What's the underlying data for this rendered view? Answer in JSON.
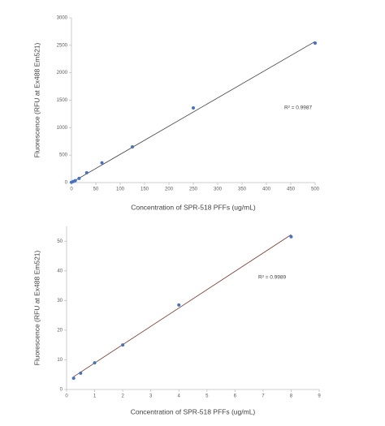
{
  "chart_data": [
    {
      "type": "scatter",
      "x_label": "Concentration of SPR-518 PFFs (ug/mL)",
      "y_label": "Fluorescence (RFU at Ex488 Em521)",
      "annotation": "R² = 0.9987",
      "x": [
        0,
        3.9,
        7.8,
        15.6,
        31.25,
        62.5,
        125,
        250,
        500
      ],
      "values": [
        5,
        20,
        35,
        75,
        180,
        360,
        650,
        1360,
        2540
      ],
      "color": "#4472c4",
      "trendline": {
        "x": [
          0,
          500
        ],
        "values": [
          0,
          2570
        ],
        "color": "#404040"
      },
      "xlim": [
        0,
        500
      ],
      "xticks": [
        0,
        50,
        100,
        150,
        200,
        250,
        300,
        350,
        400,
        450,
        500
      ],
      "ylim": [
        0,
        3000
      ],
      "yticks": [
        0,
        500,
        1000,
        1500,
        2000,
        2500,
        3000
      ]
    },
    {
      "type": "scatter",
      "x_label": "Concentration of SPR-518 PFFs (ug/mL)",
      "y_label": "Fluorescence (RFU at Ex488 Em521)",
      "annotation": "R² = 0.9989",
      "x": [
        0.25,
        0.5,
        1,
        2,
        4,
        8
      ],
      "values": [
        3.8,
        5.5,
        9,
        15,
        28.5,
        51.5
      ],
      "color": "#4472c4",
      "trendline": {
        "x": [
          0.25,
          8
        ],
        "values": [
          4.3,
          52.2
        ],
        "color": "#7a3b2e"
      },
      "xlim": [
        0,
        9
      ],
      "xticks": [
        0,
        1,
        2,
        3,
        4,
        5,
        6,
        7,
        8,
        9
      ],
      "ylim": [
        0,
        55
      ],
      "yticks": [
        0,
        10,
        20,
        30,
        40,
        50
      ]
    }
  ]
}
